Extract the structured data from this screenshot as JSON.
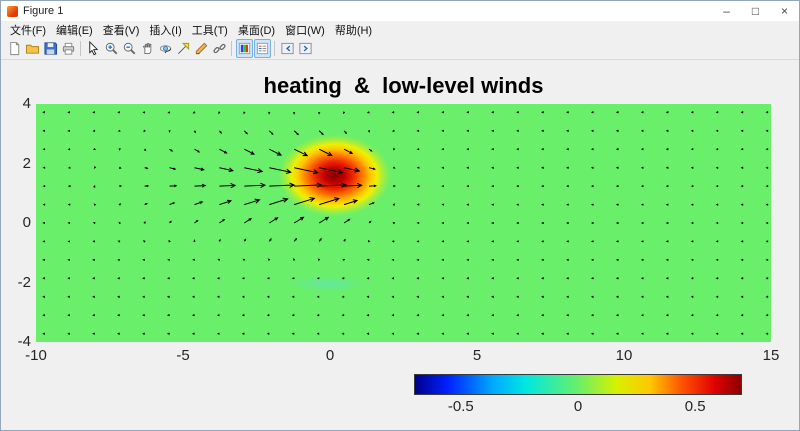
{
  "window": {
    "title": "Figure 1",
    "controls": [
      {
        "name": "minimize",
        "glyph": "–"
      },
      {
        "name": "maximize",
        "glyph": "□"
      },
      {
        "name": "close",
        "glyph": "×"
      }
    ]
  },
  "menu": {
    "items": [
      {
        "name": "file",
        "label": "文件(F)"
      },
      {
        "name": "edit",
        "label": "编辑(E)"
      },
      {
        "name": "view",
        "label": "查看(V)"
      },
      {
        "name": "insert",
        "label": "插入(I)"
      },
      {
        "name": "tools",
        "label": "工具(T)"
      },
      {
        "name": "desktop",
        "label": "桌面(D)"
      },
      {
        "name": "window",
        "label": "窗口(W)"
      },
      {
        "name": "help",
        "label": "帮助(H)"
      }
    ]
  },
  "toolbar": {
    "groups": [
      [
        "new-file",
        "open-file",
        "save-figure",
        "print-figure"
      ],
      [
        "edit-plot",
        "zoom-in",
        "zoom-out",
        "pan",
        "rotate-3d",
        "data-cursor",
        "brush-data",
        "link-plot"
      ],
      [
        "insert-colorbar",
        "insert-legend"
      ],
      [
        "hide-plot-tools",
        "show-plot-tools"
      ]
    ],
    "active": [
      "insert-colorbar",
      "insert-legend"
    ]
  },
  "chart_data": {
    "type": "quiver+heatmap",
    "title": "heating  &  low-level winds",
    "xlim": [
      -10,
      15
    ],
    "ylim": [
      -4,
      4
    ],
    "x_ticks": [
      -10,
      -5,
      0,
      5,
      10,
      15
    ],
    "y_ticks": [
      4,
      2,
      0,
      -2,
      -4
    ],
    "background_value": 0,
    "background_color": "#69ef69",
    "heat_source": {
      "x": 0.15,
      "y": 1.6,
      "rx": 2.15,
      "ry": 1.55,
      "peak_value": 0.7,
      "stops": [
        {
          "p": 0,
          "c": "#800000"
        },
        {
          "p": 16,
          "c": "#c00000"
        },
        {
          "p": 30,
          "c": "#ee2800"
        },
        {
          "p": 44,
          "c": "#ff7800"
        },
        {
          "p": 57,
          "c": "#ffc800"
        },
        {
          "p": 67,
          "c": "#eef000"
        },
        {
          "p": 76,
          "c": "#a8ee3c"
        },
        {
          "p": 88,
          "c": "rgba(105,239,105,0.55)"
        },
        {
          "p": 100,
          "c": "rgba(105,239,105,0)"
        }
      ]
    },
    "cold_spot": {
      "x": -0.1,
      "y": -2.05,
      "rx": 1.35,
      "ry": 0.28,
      "color": "rgba(96,226,208,0.55)"
    },
    "wind_field": {
      "center_x": -0.7,
      "center_y": 1.35,
      "sigma_x_west": 4.2,
      "sigma_x_east": 1.8,
      "sigma_y": 1.35,
      "u_max": 0.95,
      "convergence": 0.5,
      "base_u": -0.045,
      "arrow_scale": 1.05
    },
    "quiver_grid": {
      "nx": 30,
      "ny": 13,
      "x_start": -9.7,
      "x_end": 14.9,
      "y_start": -3.72,
      "y_end": 3.72
    },
    "colorbar": {
      "orientation": "horizontal",
      "limits": [
        -0.7,
        0.7
      ],
      "ticks": [
        -0.5,
        0,
        0.5
      ],
      "stops": [
        {
          "p": 0,
          "c": "#00008c"
        },
        {
          "p": 10,
          "c": "#0020ff"
        },
        {
          "p": 24,
          "c": "#00aaff"
        },
        {
          "p": 34,
          "c": "#00e8e0"
        },
        {
          "p": 50,
          "c": "#69ef69"
        },
        {
          "p": 62,
          "c": "#d8f000"
        },
        {
          "p": 72,
          "c": "#ffc800"
        },
        {
          "p": 82,
          "c": "#ff5200"
        },
        {
          "p": 92,
          "c": "#e00000"
        },
        {
          "p": 100,
          "c": "#8c0000"
        }
      ]
    }
  }
}
